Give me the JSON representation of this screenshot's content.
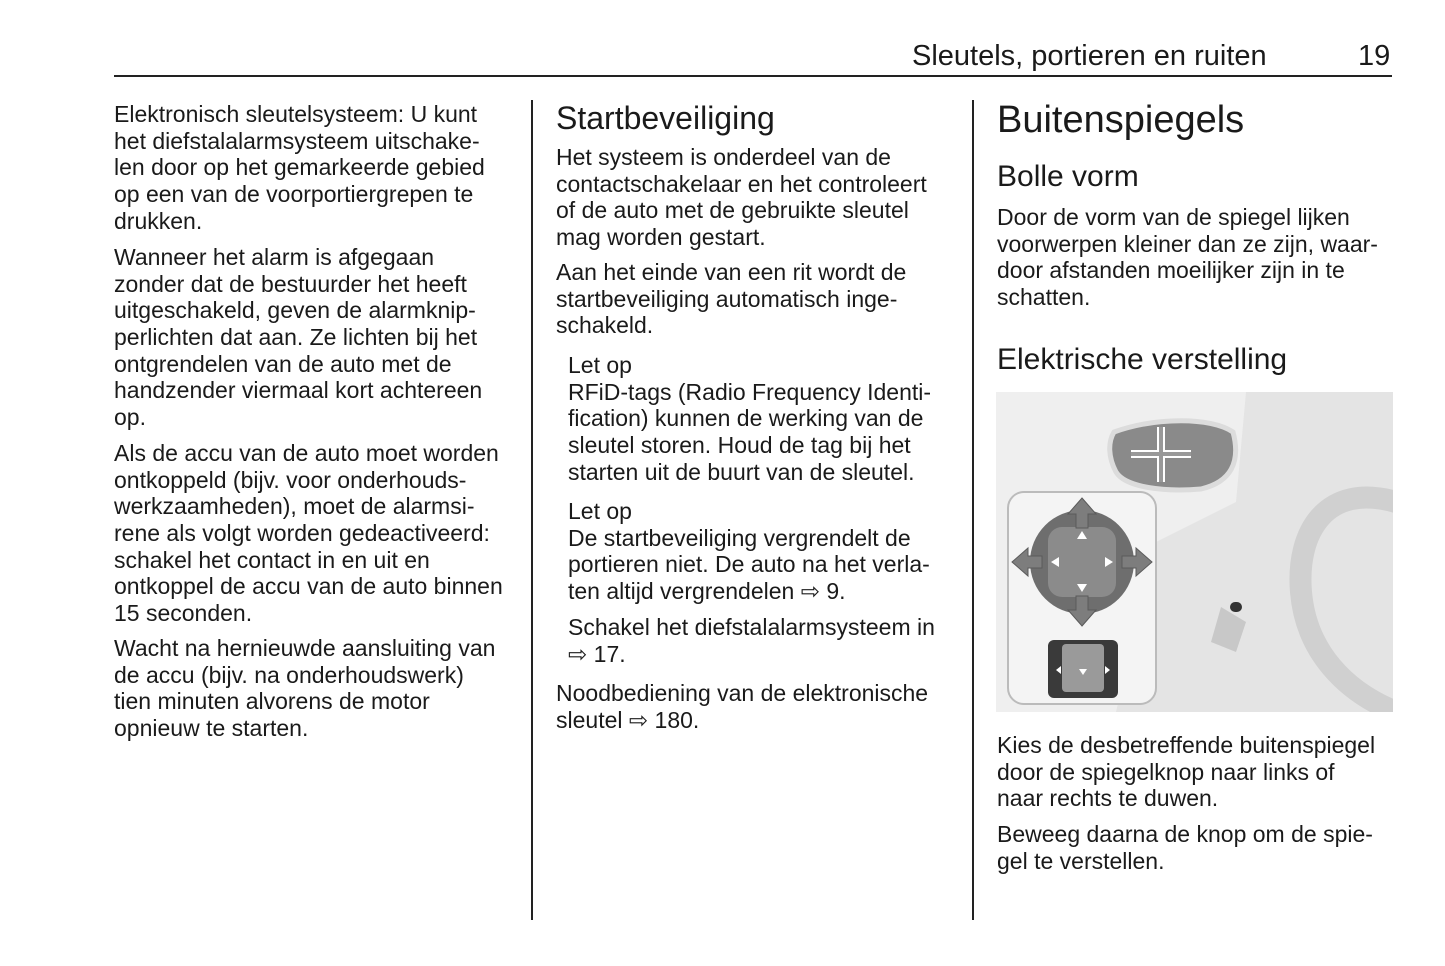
{
  "header": {
    "section_title": "Sleutels, portieren en ruiten",
    "page_number": "19"
  },
  "columns": [
    {
      "blocks": [
        {
          "type": "p",
          "lines": [
            "Elektronisch sleutelsysteem: U kunt",
            "het diefstalalarmsysteem uitschake-",
            "len door op het gemarkeerde gebied",
            "op een van de voorportiergrepen te",
            "drukken."
          ]
        },
        {
          "type": "p",
          "lines": [
            "Wanneer het alarm is afgegaan",
            "zonder dat de bestuurder het heeft",
            "uitgeschakeld, geven de alarmknip-",
            "perlichten dat aan. Ze lichten bij het",
            "ontgrendelen van de auto met de",
            "handzender viermaal kort achtereen",
            "op."
          ]
        },
        {
          "type": "p",
          "lines": [
            "Als de accu van de auto moet worden",
            "ontkoppeld (bijv. voor onderhouds-",
            "werkzaamheden), moet de alarmsi-",
            "rene als volgt worden gedeactiveerd:",
            "schakel het contact in en uit en",
            "ontkoppel de accu van de auto binnen",
            "15 seconden."
          ]
        },
        {
          "type": "p",
          "lines": [
            "Wacht na hernieuwde aansluiting van",
            "de accu (bijv. na onderhoudswerk)",
            "tien minuten alvorens de motor",
            "opnieuw te starten."
          ]
        }
      ]
    },
    {
      "blocks": [
        {
          "type": "h2",
          "lines": [
            "Startbeveiliging"
          ]
        },
        {
          "type": "p",
          "lines": [
            "Het systeem is onderdeel van de",
            "contactschakelaar en het controleert",
            "of de auto met de gebruikte sleutel",
            "mag worden gestart."
          ]
        },
        {
          "type": "p",
          "lines": [
            "Aan het einde van een rit wordt de",
            "startbeveiliging automatisch inge-",
            "schakeld."
          ]
        },
        {
          "type": "note",
          "lines": [
            "Let op",
            "RFiD-tags (Radio Frequency Identi-",
            "fication) kunnen de werking van de",
            "sleutel storen. Houd de tag bij het",
            "starten uit de buurt van de sleutel."
          ]
        },
        {
          "type": "note",
          "lines": [
            "Let op",
            "De startbeveiliging vergrendelt de",
            "portieren niet. De auto na het verla-",
            "ten altijd vergrendelen ⇨ 9."
          ]
        },
        {
          "type": "note",
          "lines": [
            "Schakel het diefstalalarmsysteem in",
            "⇨ 17."
          ]
        },
        {
          "type": "p",
          "lines": [
            "Noodbediening van de elektronische",
            "sleutel ⇨ 180."
          ]
        }
      ]
    },
    {
      "blocks": [
        {
          "type": "h1",
          "lines": [
            "Buitenspiegels"
          ]
        },
        {
          "type": "h3",
          "lines": [
            "Bolle vorm"
          ]
        },
        {
          "type": "p",
          "lines": [
            "Door de vorm van de spiegel lijken",
            "voorwerpen kleiner dan ze zijn, waar-",
            "door afstanden moeilijker zijn in te",
            "schatten."
          ]
        },
        {
          "type": "h3",
          "lines": [
            "Elektrische verstelling"
          ]
        },
        {
          "type": "p",
          "lines": [
            "Kies de desbetreffende buitenspiegel",
            "door de spiegelknop naar links of",
            "naar rechts te duwen."
          ]
        },
        {
          "type": "p",
          "lines": [
            "Beweeg daarna de knop om de spie-",
            "gel te verstellen."
          ]
        }
      ]
    }
  ],
  "illustration": {
    "subject": "mirror-adjustment-switch",
    "colors": {
      "background": "#eeeeee",
      "dark": "#7a7a7a",
      "arrow": "#888888"
    }
  }
}
